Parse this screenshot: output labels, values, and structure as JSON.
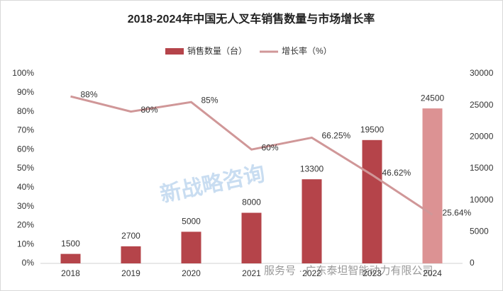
{
  "chart_data": {
    "type": "bar-line",
    "title": "2018-2024年中国无人叉车销售数量与市场增长率",
    "categories": [
      "2018",
      "2019",
      "2020",
      "2021",
      "2022",
      "2023",
      "2024"
    ],
    "series": [
      {
        "name": "销售数量（台）",
        "type": "bar",
        "axis": "y2",
        "color": "#b5444a",
        "colors": [
          "#b5444a",
          "#b5444a",
          "#b5444a",
          "#b5444a",
          "#b5444a",
          "#b5444a",
          "#dc9293"
        ],
        "values": [
          1500,
          2700,
          5000,
          8000,
          13300,
          19500,
          24500
        ]
      },
      {
        "name": "增长率（%）",
        "type": "line",
        "axis": "y",
        "color": "#d09798",
        "values": [
          88,
          80,
          85,
          60,
          66.25,
          46.62,
          25.64
        ],
        "value_labels": [
          "88%",
          "80%",
          "85%",
          "60%",
          "66.25%",
          "46.62%",
          "25.64%"
        ]
      }
    ],
    "ylim": [
      0,
      100
    ],
    "yticks": [
      {
        "value": 0,
        "label": "0%"
      },
      {
        "value": 10,
        "label": "10%"
      },
      {
        "value": 20,
        "label": "20%"
      },
      {
        "value": 30,
        "label": "30%"
      },
      {
        "value": 40,
        "label": "40%"
      },
      {
        "value": 50,
        "label": "50%"
      },
      {
        "value": 60,
        "label": "60%"
      },
      {
        "value": 70,
        "label": "70%"
      },
      {
        "value": 80,
        "label": "80%"
      },
      {
        "value": 90,
        "label": "90%"
      },
      {
        "value": 100,
        "label": "100%"
      }
    ],
    "y2lim": [
      0,
      30000
    ],
    "y2ticks": [
      0,
      5000,
      10000,
      15000,
      20000,
      25000,
      30000
    ],
    "grid": false,
    "legend": "top",
    "watermarks": [
      "新战略咨询",
      "服务号 · 广东泰坦智能动力有限公司"
    ]
  }
}
